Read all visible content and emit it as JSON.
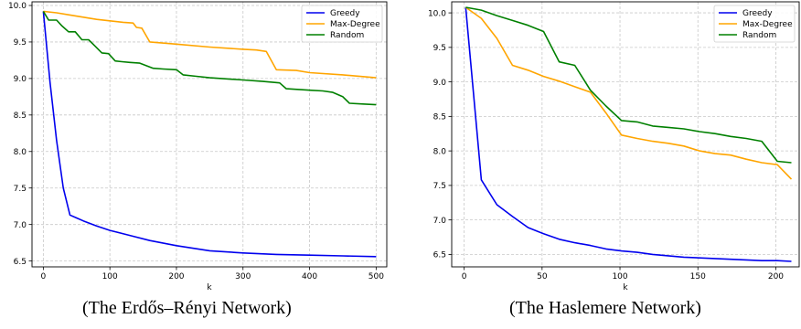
{
  "captions": [
    "(The Erdős–Rényi Network)",
    "(The Haslemere Network)"
  ],
  "chart_data": [
    {
      "type": "line",
      "title": "",
      "xlabel": "k",
      "ylabel": "",
      "xlim": [
        -17,
        516
      ],
      "ylim": [
        6.42,
        10.05
      ],
      "xticks": [
        0,
        100,
        200,
        300,
        400,
        500
      ],
      "yticks": [
        6.5,
        7.0,
        7.5,
        8.0,
        8.5,
        9.0,
        9.5,
        10.0
      ],
      "xtick_labels": [
        "0",
        "100",
        "200",
        "300",
        "400",
        "500"
      ],
      "ytick_labels": [
        "6.5",
        "7.0",
        "7.5",
        "8.0",
        "8.5",
        "9.0",
        "9.5",
        "10.0"
      ],
      "grid": true,
      "legend_position": "top-right",
      "series": [
        {
          "name": "Greedy",
          "color": "#0000ee",
          "x": [
            0,
            10,
            20,
            30,
            40,
            50,
            60,
            80,
            100,
            130,
            160,
            200,
            250,
            300,
            350,
            400,
            450,
            500
          ],
          "y": [
            9.92,
            8.95,
            8.15,
            7.5,
            7.13,
            7.09,
            7.05,
            6.98,
            6.92,
            6.85,
            6.78,
            6.71,
            6.64,
            6.61,
            6.59,
            6.58,
            6.57,
            6.56
          ]
        },
        {
          "name": "Max-Degree",
          "color": "#ffa500",
          "x": [
            0,
            20,
            40,
            60,
            80,
            100,
            120,
            135,
            140,
            148,
            160,
            200,
            250,
            300,
            320,
            335,
            350,
            380,
            400,
            450,
            500
          ],
          "y": [
            9.92,
            9.9,
            9.87,
            9.84,
            9.81,
            9.79,
            9.77,
            9.76,
            9.7,
            9.69,
            9.5,
            9.47,
            9.43,
            9.4,
            9.39,
            9.37,
            9.12,
            9.11,
            9.08,
            9.05,
            9.01
          ]
        },
        {
          "name": "Random",
          "color": "#008000",
          "x": [
            0,
            8,
            20,
            28,
            38,
            48,
            58,
            68,
            78,
            88,
            98,
            108,
            118,
            130,
            145,
            165,
            180,
            200,
            210,
            230,
            250,
            300,
            330,
            355,
            365,
            400,
            420,
            435,
            450,
            460,
            480,
            500
          ],
          "y": [
            9.92,
            9.8,
            9.8,
            9.72,
            9.64,
            9.64,
            9.53,
            9.53,
            9.44,
            9.35,
            9.34,
            9.24,
            9.23,
            9.22,
            9.21,
            9.14,
            9.13,
            9.12,
            9.05,
            9.03,
            9.01,
            8.98,
            8.96,
            8.94,
            8.86,
            8.84,
            8.83,
            8.81,
            8.75,
            8.66,
            8.65,
            8.64
          ]
        }
      ]
    },
    {
      "type": "line",
      "title": "",
      "xlabel": "k",
      "ylabel": "",
      "xlim": [
        -8,
        215
      ],
      "ylim": [
        6.32,
        10.16
      ],
      "xticks": [
        0,
        50,
        100,
        150,
        200
      ],
      "yticks": [
        6.5,
        7.0,
        7.5,
        8.0,
        8.5,
        9.0,
        9.5,
        10.0
      ],
      "xtick_labels": [
        "0",
        "50",
        "100",
        "150",
        "200"
      ],
      "ytick_labels": [
        "6.5",
        "7.0",
        "7.5",
        "8.0",
        "8.5",
        "9.0",
        "9.5",
        "10.0"
      ],
      "grid": true,
      "legend_position": "top-right",
      "series": [
        {
          "name": "Greedy",
          "color": "#0000ee",
          "x": [
            1,
            11,
            21,
            31,
            41,
            51,
            61,
            71,
            81,
            91,
            101,
            111,
            121,
            131,
            141,
            151,
            161,
            171,
            181,
            191,
            201,
            210
          ],
          "y": [
            10.08,
            7.58,
            7.22,
            7.05,
            6.89,
            6.8,
            6.72,
            6.67,
            6.63,
            6.58,
            6.55,
            6.53,
            6.5,
            6.48,
            6.46,
            6.45,
            6.44,
            6.43,
            6.42,
            6.41,
            6.41,
            6.4
          ]
        },
        {
          "name": "Max-Degree",
          "color": "#ffa500",
          "x": [
            1,
            11,
            21,
            31,
            41,
            51,
            61,
            71,
            81,
            91,
            101,
            111,
            121,
            131,
            141,
            151,
            161,
            171,
            181,
            191,
            201,
            210
          ],
          "y": [
            10.08,
            9.92,
            9.63,
            9.24,
            9.17,
            9.08,
            9.01,
            8.93,
            8.85,
            8.55,
            8.23,
            8.18,
            8.14,
            8.11,
            8.07,
            8.0,
            7.96,
            7.94,
            7.88,
            7.83,
            7.8,
            7.59
          ]
        },
        {
          "name": "Random",
          "color": "#008000",
          "x": [
            1,
            11,
            21,
            31,
            41,
            51,
            61,
            71,
            81,
            91,
            101,
            111,
            121,
            131,
            141,
            151,
            161,
            171,
            181,
            191,
            201,
            210
          ],
          "y": [
            10.08,
            10.04,
            9.96,
            9.89,
            9.82,
            9.73,
            9.29,
            9.24,
            8.88,
            8.65,
            8.44,
            8.42,
            8.36,
            8.34,
            8.32,
            8.28,
            8.25,
            8.21,
            8.18,
            8.14,
            7.85,
            7.83
          ]
        }
      ]
    }
  ]
}
